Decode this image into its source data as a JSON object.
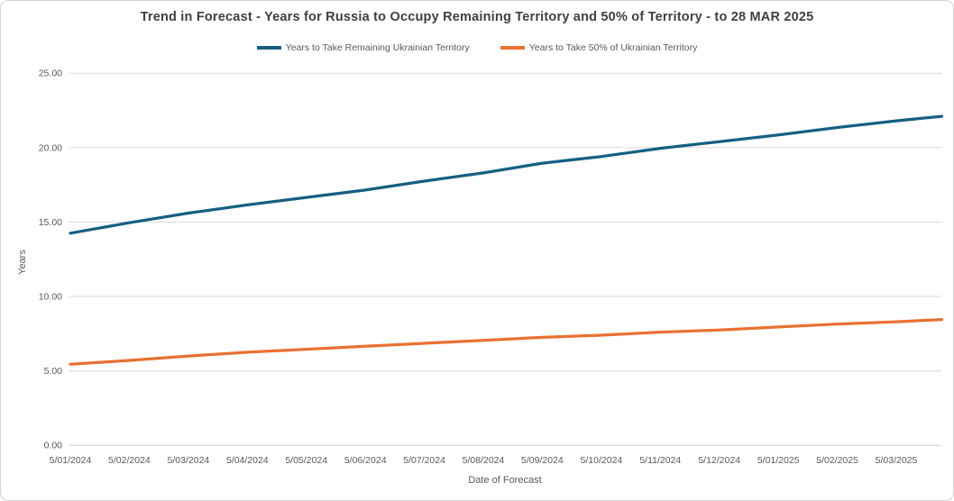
{
  "chart_data": {
    "type": "line",
    "title": "Trend in Forecast - Years for Russia to Occupy Remaining Territory and 50% of Territory - to 28 MAR 2025",
    "xlabel": "Date of Forecast",
    "ylabel": "Years",
    "ylim": [
      0,
      25
    ],
    "ytick_step": 5,
    "grid": true,
    "legend_position": "top",
    "y_ticks": [
      "0.00",
      "5.00",
      "10.00",
      "15.00",
      "20.00",
      "25.00"
    ],
    "x_tick_labels": [
      "5/01/2024",
      "5/02/2024",
      "5/03/2024",
      "5/04/2024",
      "5/05/2024",
      "5/06/2024",
      "5/07/2024",
      "5/08/2024",
      "5/09/2024",
      "5/10/2024",
      "5/11/2024",
      "5/12/2024",
      "5/01/2025",
      "5/02/2025",
      "5/03/2025"
    ],
    "x_months": [
      0,
      1,
      2,
      3,
      4,
      5,
      6,
      7,
      8,
      9,
      10,
      11,
      12,
      13,
      14,
      14.77
    ],
    "x_dates": [
      "5/01/2024",
      "5/02/2024",
      "5/03/2024",
      "5/04/2024",
      "5/05/2024",
      "5/06/2024",
      "5/07/2024",
      "5/08/2024",
      "5/09/2024",
      "5/10/2024",
      "5/11/2024",
      "5/12/2024",
      "5/01/2025",
      "5/02/2025",
      "5/03/2025",
      "3/28/2025"
    ],
    "series": [
      {
        "name": "Years to Take Remaining Ukrainian Territory",
        "color": "#156082",
        "values": [
          14.25,
          14.95,
          15.6,
          16.15,
          16.65,
          17.15,
          17.75,
          18.3,
          18.95,
          19.4,
          19.95,
          20.4,
          20.85,
          21.35,
          21.8,
          22.1
        ]
      },
      {
        "name": "Years to Take  50% of Ukrainian Territory",
        "color": "#E97132",
        "values": [
          5.45,
          5.7,
          6.0,
          6.25,
          6.45,
          6.65,
          6.85,
          7.05,
          7.25,
          7.4,
          7.6,
          7.75,
          7.95,
          8.15,
          8.3,
          8.45
        ]
      }
    ],
    "colors": {
      "title_text": "#404040",
      "axis_text": "#595959",
      "gridline": "#d9d9d9",
      "axis_line": "#cfcfcf",
      "frame_border": "#d4d4d4",
      "background": "#ffffff"
    }
  }
}
